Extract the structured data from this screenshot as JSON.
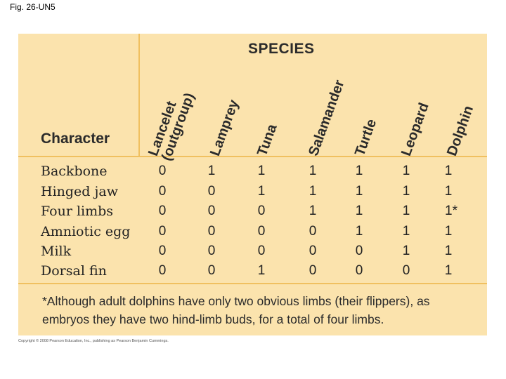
{
  "figure_label": "Fig. 26-UN5",
  "species_header": "SPECIES",
  "character_header": "Character",
  "columns": [
    {
      "line1": "Lancelet",
      "line2": "(outgroup)"
    },
    {
      "line1": "Lamprey",
      "line2": ""
    },
    {
      "line1": "Tuna",
      "line2": ""
    },
    {
      "line1": "Salamander",
      "line2": ""
    },
    {
      "line1": "Turtle",
      "line2": ""
    },
    {
      "line1": "Leopard",
      "line2": ""
    },
    {
      "line1": "Dolphin",
      "line2": ""
    }
  ],
  "rows": [
    {
      "label": "Backbone",
      "values": [
        "0",
        "1",
        "1",
        "1",
        "1",
        "1",
        "1"
      ]
    },
    {
      "label": "Hinged jaw",
      "values": [
        "0",
        "0",
        "1",
        "1",
        "1",
        "1",
        "1"
      ]
    },
    {
      "label": "Four limbs",
      "values": [
        "0",
        "0",
        "0",
        "1",
        "1",
        "1",
        "1*"
      ]
    },
    {
      "label": "Amniotic egg",
      "values": [
        "0",
        "0",
        "0",
        "0",
        "1",
        "1",
        "1"
      ]
    },
    {
      "label": "Milk",
      "values": [
        "0",
        "0",
        "0",
        "0",
        "0",
        "1",
        "1"
      ]
    },
    {
      "label": "Dorsal fin",
      "values": [
        "0",
        "0",
        "1",
        "0",
        "0",
        "0",
        "1"
      ]
    }
  ],
  "footnote": "*Although adult dolphins have only two obvious limbs (their flippers), as embryos they have two hind-limb buds, for a total of four limbs.",
  "copyright": "Copyright © 2008 Pearson Education, Inc., publishing as Pearson Benjamin Cummings.",
  "colors": {
    "panel": "#fbe3ad",
    "rule": "#f0c060",
    "text": "#2b2b2b"
  }
}
